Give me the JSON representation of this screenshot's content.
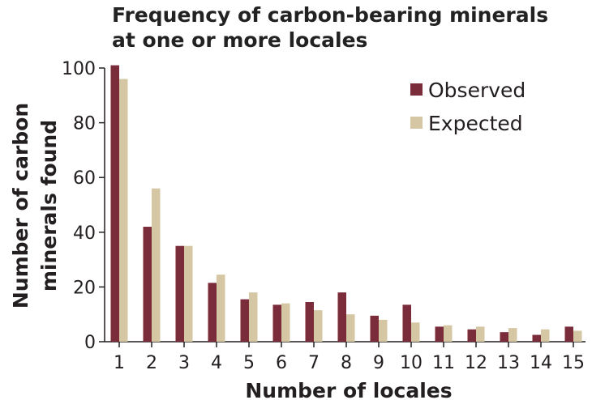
{
  "chart_data": {
    "type": "bar",
    "title_lines": [
      "Frequency of carbon-bearing minerals",
      "at one or more locales"
    ],
    "xlabel": "Number of locales",
    "ylabel_lines": [
      "Number of carbon",
      "minerals found"
    ],
    "categories": [
      "1",
      "2",
      "3",
      "4",
      "5",
      "6",
      "7",
      "8",
      "9",
      "10",
      "11",
      "12",
      "13",
      "14",
      "15"
    ],
    "ylim": [
      0,
      100
    ],
    "yticks": [
      0,
      20,
      40,
      60,
      80,
      100
    ],
    "grid": false,
    "legend_position": "top-right",
    "series": [
      {
        "name": "Observed",
        "color": "#7b2c3a",
        "values": [
          101,
          42,
          35,
          21.5,
          15.5,
          13.5,
          14.5,
          18,
          9.5,
          13.5,
          5.5,
          4.5,
          3.5,
          2.5,
          5.5
        ]
      },
      {
        "name": "Expected",
        "color": "#d5c7a3",
        "values": [
          96,
          56,
          35,
          24.5,
          18,
          14,
          11.5,
          10,
          8,
          7,
          6,
          5.5,
          5,
          4.5,
          4
        ]
      }
    ]
  }
}
